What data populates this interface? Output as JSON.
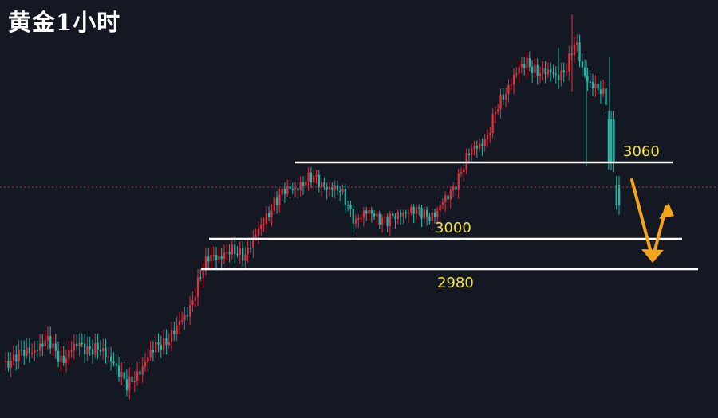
{
  "chart_data": {
    "type": "candlestick",
    "title": "黄金1小时",
    "levels": [
      {
        "name": "level-3060",
        "label": "3060"
      },
      {
        "name": "level-3000",
        "label": "3000"
      },
      {
        "name": "level-2980",
        "label": "2980"
      }
    ],
    "colors": {
      "background": "#141823",
      "up": "#e0303f",
      "down": "#21b8a8",
      "level_line": "#ffffff",
      "level_text": "#f4e340",
      "arrow": "#f2a51a",
      "current_price_line": "#b23a48"
    },
    "grid": false,
    "legend": false
  }
}
